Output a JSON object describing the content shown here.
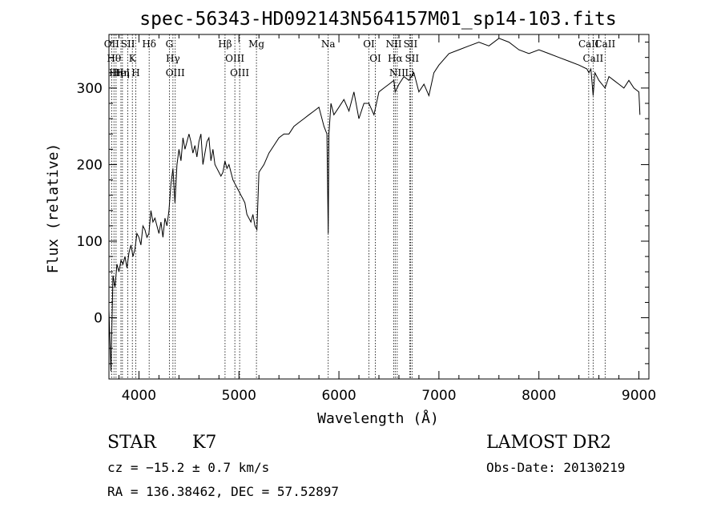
{
  "chart_data": {
    "type": "line",
    "title": "spec-56343-HD092143N564157M01_sp14-103.fits",
    "xlabel": "Wavelength (Å)",
    "ylabel": "Flux (relative)",
    "xlim": [
      3700,
      9100
    ],
    "ylim": [
      -80,
      370
    ],
    "xticks": [
      4000,
      5000,
      6000,
      7000,
      8000,
      9000
    ],
    "yticks": [
      0,
      100,
      200,
      300
    ],
    "grid": false,
    "series": [
      {
        "x": [
          3700,
          3720,
          3740,
          3760,
          3780,
          3800,
          3820,
          3840,
          3860,
          3880,
          3900,
          3920,
          3940,
          3960,
          3980,
          4000,
          4020,
          4040,
          4060,
          4080,
          4100,
          4120,
          4140,
          4160,
          4180,
          4200,
          4220,
          4240,
          4260,
          4280,
          4300,
          4320,
          4340,
          4360,
          4380,
          4400,
          4420,
          4440,
          4460,
          4480,
          4500,
          4520,
          4540,
          4560,
          4580,
          4600,
          4620,
          4640,
          4660,
          4680,
          4700,
          4720,
          4740,
          4760,
          4780,
          4800,
          4820,
          4840,
          4860,
          4880,
          4900,
          4920,
          4940,
          4960,
          4980,
          5000,
          5020,
          5040,
          5060,
          5080,
          5100,
          5120,
          5140,
          5160,
          5180,
          5200,
          5250,
          5300,
          5350,
          5400,
          5450,
          5500,
          5550,
          5600,
          5650,
          5700,
          5750,
          5800,
          5850,
          5880,
          5893,
          5900,
          5920,
          5950,
          6000,
          6050,
          6100,
          6150,
          6200,
          6250,
          6300,
          6350,
          6400,
          6450,
          6500,
          6550,
          6563,
          6600,
          6650,
          6700,
          6750,
          6800,
          6850,
          6900,
          6950,
          7000,
          7100,
          7200,
          7300,
          7400,
          7500,
          7600,
          7700,
          7800,
          7900,
          8000,
          8100,
          8200,
          8300,
          8400,
          8480,
          8500,
          8520,
          8542,
          8560,
          8600,
          8662,
          8700,
          8750,
          8800,
          8850,
          8900,
          8950,
          9000,
          9010
        ],
        "values": [
          10,
          -70,
          55,
          40,
          70,
          60,
          75,
          70,
          80,
          65,
          85,
          95,
          80,
          90,
          110,
          105,
          95,
          120,
          115,
          105,
          110,
          140,
          125,
          130,
          120,
          110,
          125,
          105,
          130,
          120,
          140,
          175,
          195,
          150,
          200,
          220,
          205,
          235,
          220,
          230,
          240,
          230,
          215,
          225,
          210,
          230,
          240,
          200,
          215,
          230,
          235,
          205,
          220,
          200,
          195,
          190,
          185,
          190,
          205,
          195,
          200,
          190,
          180,
          175,
          170,
          165,
          160,
          155,
          150,
          135,
          130,
          125,
          135,
          120,
          115,
          190,
          200,
          215,
          225,
          235,
          240,
          240,
          250,
          255,
          260,
          265,
          270,
          275,
          250,
          240,
          110,
          240,
          280,
          265,
          275,
          285,
          270,
          295,
          260,
          280,
          280,
          265,
          295,
          300,
          305,
          310,
          295,
          305,
          315,
          310,
          320,
          295,
          305,
          290,
          320,
          330,
          345,
          350,
          355,
          360,
          355,
          365,
          360,
          350,
          345,
          350,
          345,
          340,
          335,
          330,
          325,
          320,
          325,
          290,
          320,
          310,
          300,
          315,
          310,
          305,
          300,
          310,
          300,
          295,
          265
        ]
      }
    ],
    "line_marks": [
      {
        "wavelength": 3727,
        "label": "OII"
      },
      {
        "wavelength": 3750,
        "label": "Hθ"
      },
      {
        "wavelength": 3771,
        "label": "Hη"
      },
      {
        "wavelength": 3820,
        "label": "HeI"
      },
      {
        "wavelength": 3835,
        "label": "Hη"
      },
      {
        "wavelength": 3889,
        "label": "SII"
      },
      {
        "wavelength": 3934,
        "label": "K"
      },
      {
        "wavelength": 3968,
        "label": "H"
      },
      {
        "wavelength": 4102,
        "label": "Hδ"
      },
      {
        "wavelength": 4304,
        "label": "G"
      },
      {
        "wavelength": 4340,
        "label": "Hγ"
      },
      {
        "wavelength": 4363,
        "label": "OIII"
      },
      {
        "wavelength": 4861,
        "label": "Hβ"
      },
      {
        "wavelength": 4959,
        "label": "OIII"
      },
      {
        "wavelength": 5007,
        "label": "OIII"
      },
      {
        "wavelength": 5175,
        "label": "Mg"
      },
      {
        "wavelength": 5893,
        "label": "Na"
      },
      {
        "wavelength": 6300,
        "label": "OI"
      },
      {
        "wavelength": 6364,
        "label": "OI"
      },
      {
        "wavelength": 6548,
        "label": "NII"
      },
      {
        "wavelength": 6563,
        "label": "Hα"
      },
      {
        "wavelength": 6583,
        "label": "NII"
      },
      {
        "wavelength": 6707,
        "label": "Li"
      },
      {
        "wavelength": 6716,
        "label": "SII"
      },
      {
        "wavelength": 6731,
        "label": "SII"
      },
      {
        "wavelength": 8498,
        "label": "CaII"
      },
      {
        "wavelength": 8542,
        "label": "CaII"
      },
      {
        "wavelength": 8662,
        "label": "CaII"
      }
    ]
  },
  "info": {
    "object_class": "STAR",
    "subclass": "K7",
    "survey": "LAMOST DR2",
    "cz": "cz = −15.2 ± 0.7 km/s",
    "obs_date": "Obs-Date: 20130219",
    "coords": "RA = 136.38462, DEC =  57.52897"
  }
}
